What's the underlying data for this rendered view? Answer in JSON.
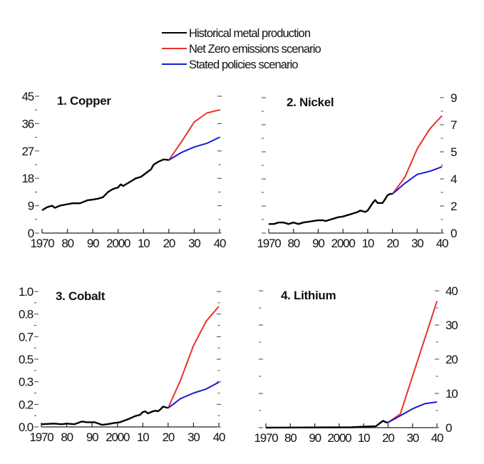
{
  "legend": [
    {
      "label": "Historical metal production",
      "color": "#000000"
    },
    {
      "label": "Net Zero emissions scenario",
      "color": "#e8332c"
    },
    {
      "label": "Stated policies scenario",
      "color": "#1a1ad6"
    }
  ],
  "chart_data": [
    {
      "type": "line",
      "title": "1. Copper",
      "axis_side": "left",
      "xlim": [
        1970,
        2040
      ],
      "ylim": [
        0,
        45
      ],
      "x_ticks": [
        1970,
        1980,
        1990,
        2000,
        2010,
        2020,
        2030,
        2040
      ],
      "x_tick_labels": [
        "1970",
        "80",
        "90",
        "2000",
        "10",
        "20",
        "30",
        "40"
      ],
      "y_tick_labels": [
        "0",
        "9",
        "18",
        "27",
        "36",
        "45"
      ],
      "series": [
        {
          "name": "Historical metal production",
          "x": [
            1970,
            1972,
            1974,
            1975,
            1977,
            1980,
            1982,
            1985,
            1988,
            1990,
            1992,
            1994,
            1996,
            1998,
            2000,
            2001,
            2002,
            2005,
            2007,
            2009,
            2011,
            2013,
            2014,
            2016,
            2018,
            2020
          ],
          "y": [
            7.5,
            8.5,
            9,
            8.3,
            9,
            9.5,
            9.8,
            9.8,
            10.8,
            11,
            11.3,
            11.8,
            13.5,
            14.5,
            15,
            16,
            15.5,
            17,
            18,
            18.5,
            19.7,
            21,
            22.5,
            23.5,
            24.2,
            24
          ]
        },
        {
          "name": "Net Zero emissions scenario",
          "x": [
            2020,
            2025,
            2030,
            2035,
            2040
          ],
          "y": [
            24,
            30,
            36.5,
            39.5,
            40.5
          ]
        },
        {
          "name": "Stated policies scenario",
          "x": [
            2020,
            2025,
            2030,
            2035,
            2040
          ],
          "y": [
            24,
            26.5,
            28.3,
            29.5,
            31.5
          ]
        }
      ]
    },
    {
      "type": "line",
      "title": "2. Nickel",
      "axis_side": "right",
      "xlim": [
        1970,
        2040
      ],
      "ylim": [
        0,
        9
      ],
      "x_ticks": [
        1970,
        1980,
        1990,
        2000,
        2010,
        2020,
        2030,
        2040
      ],
      "x_tick_labels": [
        "1970",
        "80",
        "90",
        "2000",
        "10",
        "20",
        "30",
        "40"
      ],
      "y_tick_labels": [
        "0",
        "2",
        "4",
        "5",
        "7",
        "9"
      ],
      "series": [
        {
          "name": "Historical metal production",
          "x": [
            1970,
            1972,
            1974,
            1976,
            1978,
            1980,
            1982,
            1984,
            1986,
            1988,
            1990,
            1992,
            1993,
            1995,
            1998,
            2000,
            2002,
            2004,
            2006,
            2007,
            2009,
            2010,
            2012,
            2013,
            2014,
            2016,
            2018,
            2019,
            2020
          ],
          "y": [
            0.6,
            0.6,
            0.7,
            0.7,
            0.6,
            0.7,
            0.6,
            0.7,
            0.75,
            0.8,
            0.85,
            0.85,
            0.8,
            0.9,
            1.05,
            1.1,
            1.2,
            1.3,
            1.4,
            1.5,
            1.4,
            1.5,
            2.0,
            2.2,
            2.0,
            2.0,
            2.5,
            2.6,
            2.6
          ]
        },
        {
          "name": "Net Zero emissions scenario",
          "x": [
            2020,
            2025,
            2030,
            2035,
            2040
          ],
          "y": [
            2.6,
            3.7,
            5.6,
            6.9,
            7.8
          ]
        },
        {
          "name": "Stated policies scenario",
          "x": [
            2020,
            2025,
            2030,
            2035,
            2040
          ],
          "y": [
            2.6,
            3.3,
            3.9,
            4.1,
            4.4
          ]
        }
      ]
    },
    {
      "type": "line",
      "title": "3. Cobalt",
      "axis_side": "left",
      "xlim": [
        1970,
        2040
      ],
      "ylim": [
        0,
        1.0
      ],
      "x_ticks": [
        1970,
        1980,
        1990,
        2000,
        2010,
        2020,
        2030,
        2040
      ],
      "x_tick_labels": [
        "1970",
        "80",
        "90",
        "2000",
        "10",
        "20",
        "30",
        "40"
      ],
      "y_tick_labels": [
        "0.0",
        "0.2",
        "0.3",
        "0.5",
        "0.7",
        "0.8",
        "1.0"
      ],
      "series": [
        {
          "name": "Historical metal production",
          "x": [
            1970,
            1975,
            1978,
            1980,
            1983,
            1986,
            1988,
            1991,
            1994,
            1996,
            1999,
            2001,
            2004,
            2007,
            2009,
            2010,
            2011,
            2012,
            2014,
            2015,
            2016,
            2017,
            2018,
            2020
          ],
          "y": [
            0.02,
            0.025,
            0.02,
            0.025,
            0.02,
            0.04,
            0.035,
            0.035,
            0.015,
            0.02,
            0.03,
            0.035,
            0.055,
            0.08,
            0.09,
            0.11,
            0.115,
            0.1,
            0.115,
            0.12,
            0.115,
            0.13,
            0.15,
            0.14
          ]
        },
        {
          "name": "Net Zero emissions scenario",
          "x": [
            2020,
            2025,
            2030,
            2035,
            2040
          ],
          "y": [
            0.14,
            0.35,
            0.6,
            0.78,
            0.89
          ]
        },
        {
          "name": "Stated policies scenario",
          "x": [
            2020,
            2025,
            2030,
            2035,
            2040
          ],
          "y": [
            0.14,
            0.21,
            0.25,
            0.28,
            0.33
          ]
        }
      ]
    },
    {
      "type": "line",
      "title": "4. Lithium",
      "axis_side": "right",
      "xlim": [
        1970,
        2040
      ],
      "ylim": [
        0,
        40
      ],
      "x_ticks": [
        1970,
        1980,
        1990,
        2000,
        2010,
        2020,
        2030,
        2040
      ],
      "x_tick_labels": [
        "1970",
        "80",
        "90",
        "2000",
        "10",
        "20",
        "30",
        "40"
      ],
      "y_tick_labels": [
        "0",
        "10",
        "20",
        "30",
        "40"
      ],
      "series": [
        {
          "name": "Historical metal production",
          "x": [
            1970,
            2005,
            2010,
            2015,
            2017,
            2018,
            2019,
            2020
          ],
          "y": [
            0,
            0.1,
            0.3,
            0.4,
            1.5,
            2.0,
            1.6,
            1.5
          ]
        },
        {
          "name": "Net Zero emissions scenario",
          "x": [
            2020,
            2025,
            2030,
            2035,
            2040
          ],
          "y": [
            1.5,
            4,
            15,
            26,
            37
          ]
        },
        {
          "name": "Stated policies scenario",
          "x": [
            2020,
            2025,
            2030,
            2035,
            2040
          ],
          "y": [
            1.5,
            3.5,
            5.5,
            7,
            7.5
          ]
        }
      ]
    }
  ]
}
